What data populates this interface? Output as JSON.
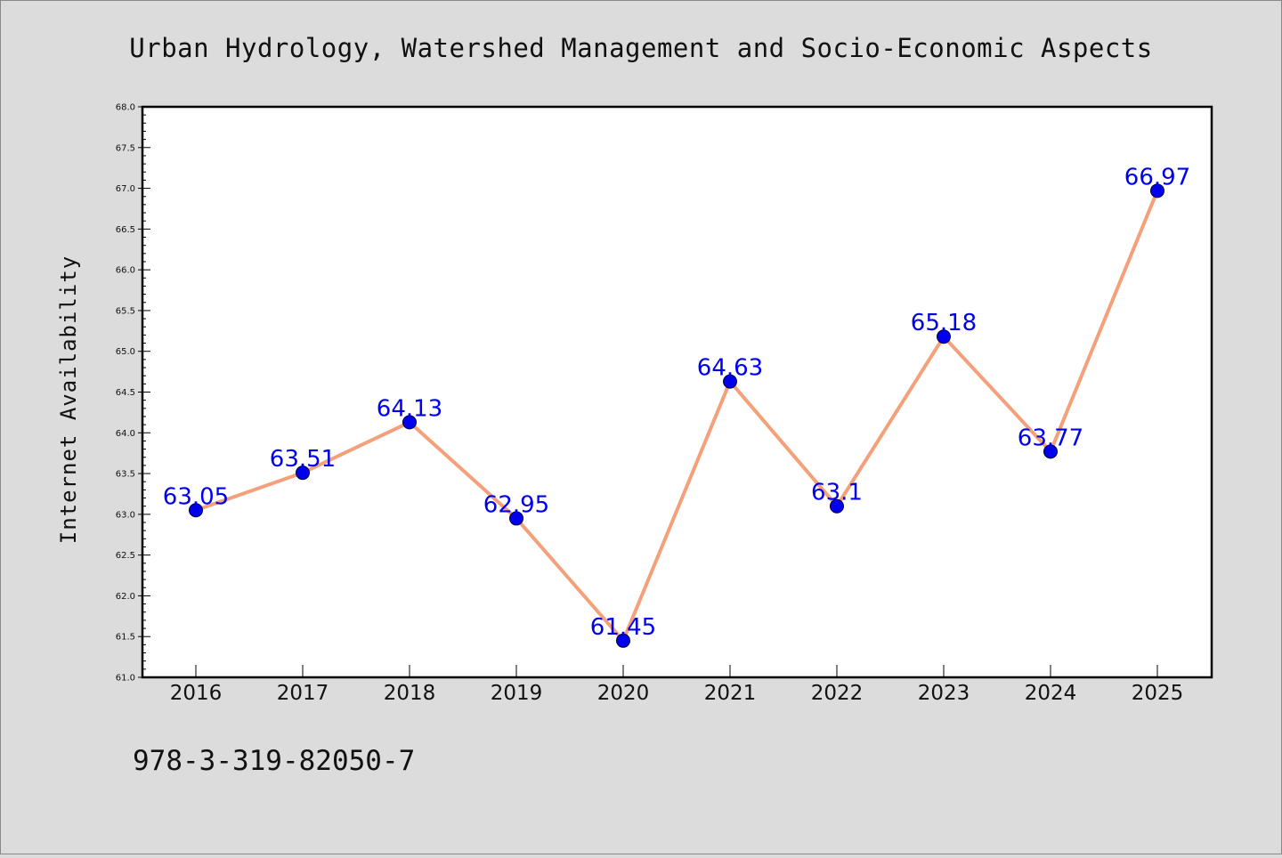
{
  "chart_data": {
    "type": "line",
    "title": "Urban Hydrology, Watershed Management and Socio-Economic Aspects",
    "xlabel": "",
    "ylabel": "Internet Availability",
    "categories": [
      "2016",
      "2017",
      "2018",
      "2019",
      "2020",
      "2021",
      "2022",
      "2023",
      "2024",
      "2025"
    ],
    "series": [
      {
        "values": [
          63.05,
          63.51,
          64.13,
          62.95,
          61.45,
          64.63,
          63.1,
          65.18,
          63.77,
          66.97
        ],
        "data_labels": [
          "63.05",
          "63.51",
          "64.13",
          "62.95",
          "61.45",
          "64.63",
          "63.1",
          "65.18",
          "63.77",
          "66.97"
        ]
      }
    ],
    "ylim": [
      61.0,
      68.0
    ],
    "y_ticks": [
      "61.0",
      "61.5",
      "62.0",
      "62.5",
      "63.0",
      "63.5",
      "64.0",
      "64.5",
      "65.0",
      "65.5",
      "66.0",
      "66.5",
      "67.0",
      "67.5",
      "68.0"
    ],
    "grid": false,
    "legend": "none",
    "colors": {
      "line": "#f4a07a",
      "marker": "#0000ee",
      "marker_edge": "#000033",
      "data_label": "#0000ee",
      "background": "#dcdcdc",
      "plot_background": "#ffffff"
    }
  },
  "footer": {
    "text": "978-3-319-82050-7"
  }
}
